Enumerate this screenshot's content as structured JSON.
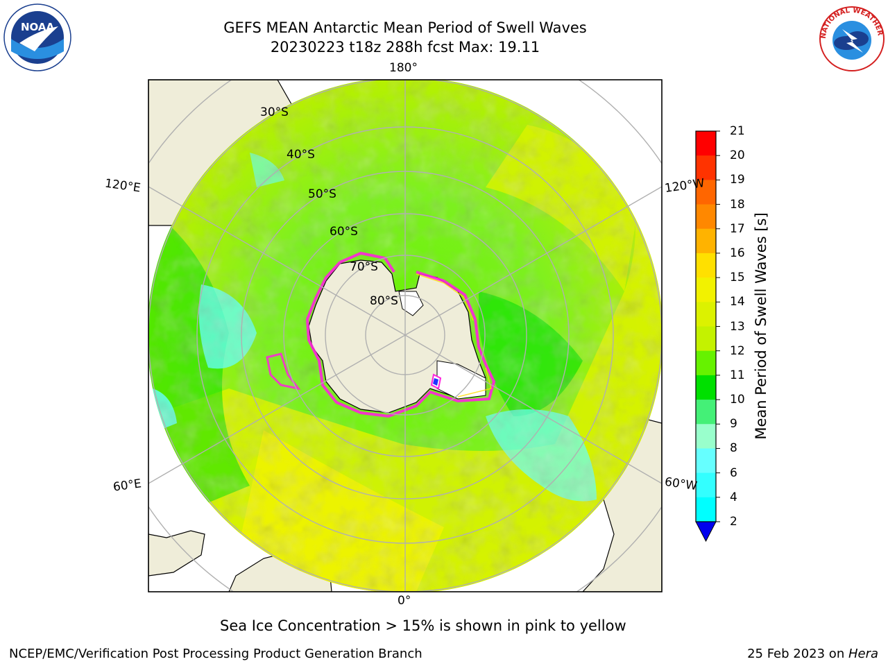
{
  "header": {
    "title_line1": "GEFS MEAN Antarctic Mean Period of Swell Waves",
    "title_line2": "20230223 t18z 288h fcst   Max: 19.11"
  },
  "logos": {
    "left": {
      "name": "noaa-logo",
      "text": "NOAA"
    },
    "right": {
      "name": "nws-logo",
      "text": "NATIONAL WEATHER SERVICE"
    }
  },
  "map": {
    "projection": "south-polar-stereographic",
    "lon_labels": {
      "top": "180°",
      "bottom": "0°",
      "left_upper": "120°E",
      "left_lower": "60°E",
      "right_upper": "120°W",
      "right_lower": "60°W"
    },
    "lat_labels": [
      "30°S",
      "40°S",
      "50°S",
      "60°S",
      "70°S",
      "80°S"
    ],
    "colors": {
      "land": "#efedd9",
      "ocean_mask": "#ffffff",
      "grid": "#b0b0b0",
      "ice_edge": "#ff22dd"
    }
  },
  "colorbar": {
    "label": "Mean Period of Swell Waves [s]",
    "ticks": [
      "21",
      "20",
      "19",
      "18",
      "17",
      "16",
      "15",
      "14",
      "13",
      "12",
      "11",
      "10",
      "9",
      "8",
      "6",
      "4",
      "2"
    ],
    "colors": [
      "#ff0000",
      "#ff3300",
      "#ff6600",
      "#ff8800",
      "#ffb300",
      "#ffe000",
      "#f2f200",
      "#dcf200",
      "#c4f200",
      "#66f200",
      "#00e000",
      "#44f077",
      "#99ffcc",
      "#66ffff",
      "#33ffff",
      "#00ffff",
      "#0099ff",
      "#0033ff"
    ],
    "extend_color": "#0000ee"
  },
  "footer": {
    "note": "Sea Ice Concentration > 15% is shown in pink to yellow",
    "left": "NCEP/EMC/Verification Post Processing Product Generation Branch",
    "right_prefix": "25 Feb 2023 on ",
    "right_italic": "Hera"
  }
}
